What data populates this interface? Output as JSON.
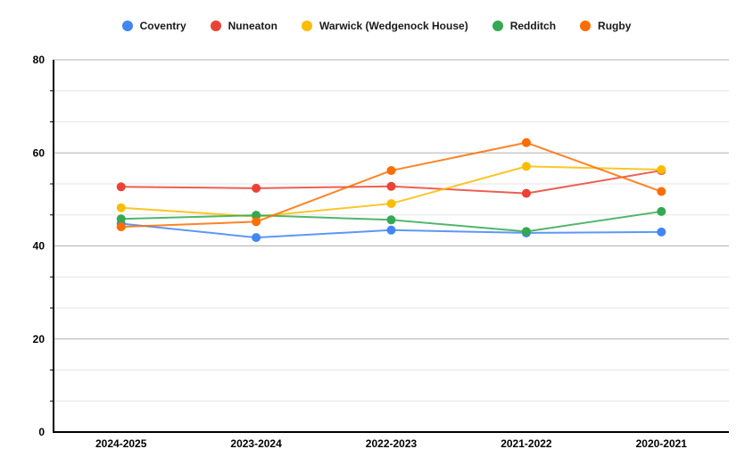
{
  "chart_data": {
    "type": "line",
    "title": "",
    "xlabel": "",
    "ylabel": "",
    "categories": [
      "2024-2025",
      "2023-2024",
      "2022-2023",
      "2021-2022",
      "2020-2021"
    ],
    "series": [
      {
        "name": "Coventry",
        "color": "#4285F4",
        "values": [
          44.8,
          41.8,
          43.4,
          42.8,
          43.0
        ]
      },
      {
        "name": "Nuneaton",
        "color": "#EA4335",
        "values": [
          52.7,
          52.4,
          52.8,
          51.3,
          56.2
        ]
      },
      {
        "name": "Warwick (Wedgenock House)",
        "color": "#FBBC04",
        "values": [
          48.2,
          46.3,
          49.1,
          57.1,
          56.4
        ]
      },
      {
        "name": "Redditch",
        "color": "#34A853",
        "values": [
          45.8,
          46.6,
          45.6,
          43.1,
          47.4
        ]
      },
      {
        "name": "Rugby",
        "color": "#FF6D01",
        "values": [
          44.1,
          45.2,
          56.2,
          62.2,
          51.7
        ]
      }
    ],
    "ylim": [
      0,
      80
    ],
    "y_major_ticks": [
      0,
      20,
      40,
      60,
      80
    ],
    "minor_gridlines_between_majors": 2,
    "grid": true,
    "legend_position": "top"
  },
  "colors": {
    "background": "#ffffff",
    "axis_line": "#000000",
    "major_gridline": "#b0b0b0",
    "minor_gridline": "#e6e6e6",
    "tick_mark": "#000000",
    "label_text": "#000000"
  }
}
